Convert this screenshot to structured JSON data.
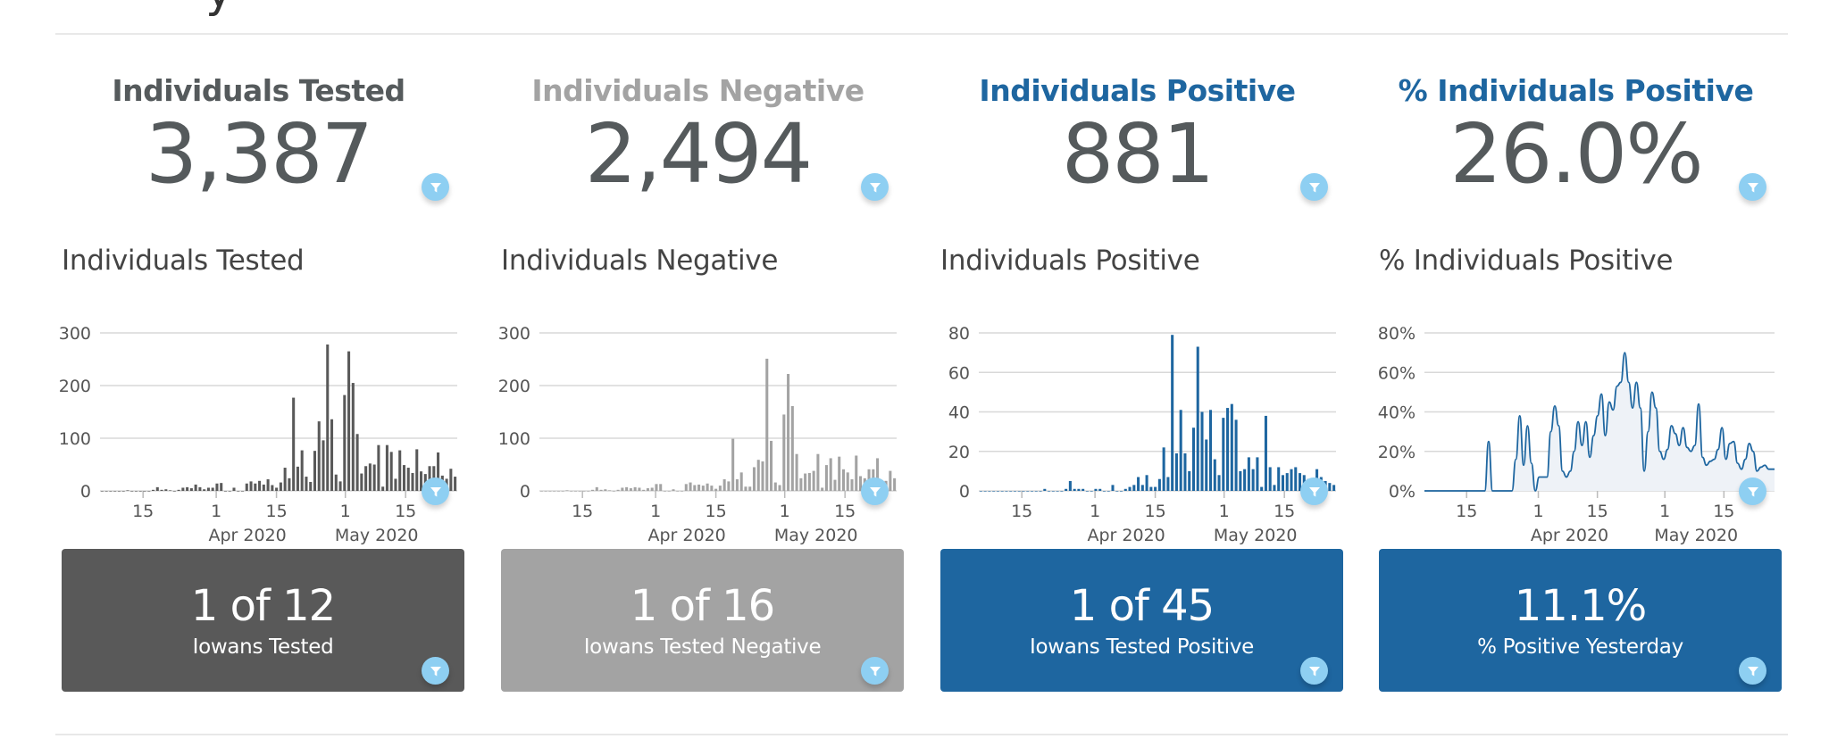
{
  "page": {
    "partial_title_glyph": "y"
  },
  "colors": {
    "tested": "#595959",
    "negative": "#a3a3a3",
    "positive": "#1e66a0",
    "value_text": "#555a5c",
    "filter_button": "#8ecff2",
    "grid": "#d8d8d8",
    "area_fill": "#eef2f7"
  },
  "kpis": [
    {
      "title": "Individuals Tested",
      "value": "3,387",
      "title_color": "#555a5c"
    },
    {
      "title": "Individuals Negative",
      "value": "2,494",
      "title_color": "#a3a3a3"
    },
    {
      "title": "Individuals Positive",
      "value": "881",
      "title_color": "#1e66a0"
    },
    {
      "title": "% Individuals Positive",
      "value": "26.0%",
      "title_color": "#1e66a0"
    }
  ],
  "cards": [
    {
      "value": "1 of 12",
      "label": "Iowans Tested",
      "bg": "#595959"
    },
    {
      "value": "1 of 16",
      "label": "Iowans Tested Negative",
      "bg": "#a3a3a3"
    },
    {
      "value": "1 of 45",
      "label": "Iowans Tested Positive",
      "bg": "#1e66a0"
    },
    {
      "value": "11.1%",
      "label": "% Positive Yesterday",
      "bg": "#1e66a0"
    }
  ],
  "filter_icon": "filter-funnel-icon",
  "chart_data": [
    {
      "type": "bar",
      "title": "Individuals Tested",
      "x_start": "2020-03-05",
      "x_end": "2020-05-27",
      "x_ticks": [
        {
          "label": "15",
          "date": "2020-03-15"
        },
        {
          "label": "1",
          "sub": "Apr 2020",
          "date": "2020-04-01"
        },
        {
          "label": "15",
          "date": "2020-04-15"
        },
        {
          "label": "1",
          "sub": "May 2020",
          "date": "2020-05-01"
        },
        {
          "label": "15",
          "date": "2020-05-15"
        }
      ],
      "y_ticks": [
        "0",
        "100",
        "200",
        "300"
      ],
      "ylim": [
        0,
        300
      ],
      "color": "#595959",
      "values": [
        0,
        0,
        0,
        0,
        0,
        0,
        1,
        0,
        0,
        0,
        0,
        0,
        2,
        7,
        2,
        3,
        1,
        0,
        2,
        6,
        7,
        5,
        12,
        7,
        3,
        6,
        6,
        14,
        15,
        0,
        0,
        6,
        0,
        0,
        14,
        18,
        14,
        19,
        12,
        22,
        11,
        6,
        16,
        44,
        24,
        177,
        46,
        77,
        27,
        17,
        76,
        132,
        96,
        278,
        136,
        31,
        18,
        182,
        265,
        205,
        108,
        33,
        47,
        52,
        50,
        87,
        8,
        87,
        74,
        23,
        77,
        49,
        44,
        34,
        79,
        37,
        32,
        47,
        47,
        73,
        29,
        23,
        42,
        27
      ]
    },
    {
      "type": "bar",
      "title": "Individuals Negative",
      "x_start": "2020-03-05",
      "x_end": "2020-05-27",
      "x_ticks": [
        {
          "label": "15",
          "date": "2020-03-15"
        },
        {
          "label": "1",
          "sub": "Apr 2020",
          "date": "2020-04-01"
        },
        {
          "label": "15",
          "date": "2020-04-15"
        },
        {
          "label": "1",
          "sub": "May 2020",
          "date": "2020-05-01"
        },
        {
          "label": "15",
          "date": "2020-05-15"
        }
      ],
      "y_ticks": [
        "0",
        "100",
        "200",
        "300"
      ],
      "ylim": [
        0,
        300
      ],
      "color": "#a3a3a3",
      "values": [
        0,
        0,
        0,
        0,
        0,
        0,
        1,
        0,
        0,
        0,
        0,
        0,
        2,
        7,
        2,
        3,
        1,
        0,
        2,
        6,
        7,
        5,
        7,
        6,
        2,
        5,
        6,
        13,
        13,
        0,
        0,
        3,
        0,
        0,
        13,
        16,
        11,
        12,
        10,
        14,
        10,
        4,
        10,
        22,
        18,
        99,
        22,
        35,
        8,
        8,
        45,
        59,
        56,
        251,
        95,
        16,
        11,
        145,
        222,
        161,
        70,
        24,
        33,
        34,
        38,
        70,
        6,
        49,
        62,
        21,
        65,
        41,
        35,
        22,
        67,
        28,
        24,
        41,
        41,
        62,
        20,
        19,
        38,
        24
      ]
    },
    {
      "type": "bar",
      "title": "Individuals Positive",
      "x_start": "2020-03-05",
      "x_end": "2020-05-27",
      "x_ticks": [
        {
          "label": "15",
          "date": "2020-03-15"
        },
        {
          "label": "1",
          "sub": "Apr 2020",
          "date": "2020-04-01"
        },
        {
          "label": "15",
          "date": "2020-04-15"
        },
        {
          "label": "1",
          "sub": "May 2020",
          "date": "2020-05-01"
        },
        {
          "label": "15",
          "date": "2020-05-15"
        }
      ],
      "y_ticks": [
        "0",
        "20",
        "40",
        "60",
        "80"
      ],
      "ylim": [
        0,
        80
      ],
      "color": "#1e66a0",
      "values": [
        0,
        0,
        0,
        0,
        0,
        0,
        0,
        0,
        0,
        0,
        0,
        0,
        0,
        0,
        0,
        1,
        0,
        0,
        0,
        0,
        1,
        5,
        1,
        1,
        1,
        0,
        0,
        1,
        1,
        0,
        0,
        3,
        0,
        0,
        1,
        2,
        3,
        7,
        3,
        8,
        2,
        2,
        6,
        22,
        7,
        79,
        19,
        41,
        19,
        10,
        32,
        73,
        40,
        26,
        41,
        16,
        8,
        37,
        42,
        44,
        36,
        10,
        11,
        17,
        11,
        17,
        2,
        38,
        12,
        3,
        12,
        8,
        9,
        11,
        12,
        9,
        8,
        6,
        5,
        11,
        7,
        5,
        4,
        3
      ]
    },
    {
      "type": "area",
      "title": "% Individuals Positive",
      "x_start": "2020-03-05",
      "x_end": "2020-05-27",
      "x_ticks": [
        {
          "label": "15",
          "date": "2020-03-15"
        },
        {
          "label": "1",
          "sub": "Apr 2020",
          "date": "2020-04-01"
        },
        {
          "label": "15",
          "date": "2020-04-15"
        },
        {
          "label": "1",
          "sub": "May 2020",
          "date": "2020-05-01"
        },
        {
          "label": "15",
          "date": "2020-05-15"
        }
      ],
      "y_ticks": [
        "0%",
        "20%",
        "40%",
        "60%",
        "80%"
      ],
      "ylim": [
        0,
        80
      ],
      "color": "#1e66a0",
      "fill": "#eef2f7",
      "values": [
        0,
        0,
        0,
        0,
        0,
        0,
        0,
        0,
        0,
        0,
        0,
        0,
        0,
        0,
        0,
        0,
        25,
        0,
        0,
        0,
        0,
        0,
        0,
        16,
        38,
        13,
        33,
        14,
        0,
        7,
        7,
        7,
        30,
        43,
        33,
        10,
        7,
        10,
        20,
        35,
        23,
        35,
        17,
        28,
        38,
        49,
        28,
        45,
        41,
        53,
        55,
        70,
        55,
        42,
        55,
        42,
        10,
        30,
        50,
        42,
        20,
        16,
        21,
        33,
        29,
        23,
        32,
        22,
        20,
        23,
        44,
        17,
        13,
        15,
        16,
        21,
        32,
        16,
        24,
        25,
        14,
        11,
        16,
        24,
        20,
        10,
        12,
        13,
        11,
        11
      ]
    }
  ]
}
